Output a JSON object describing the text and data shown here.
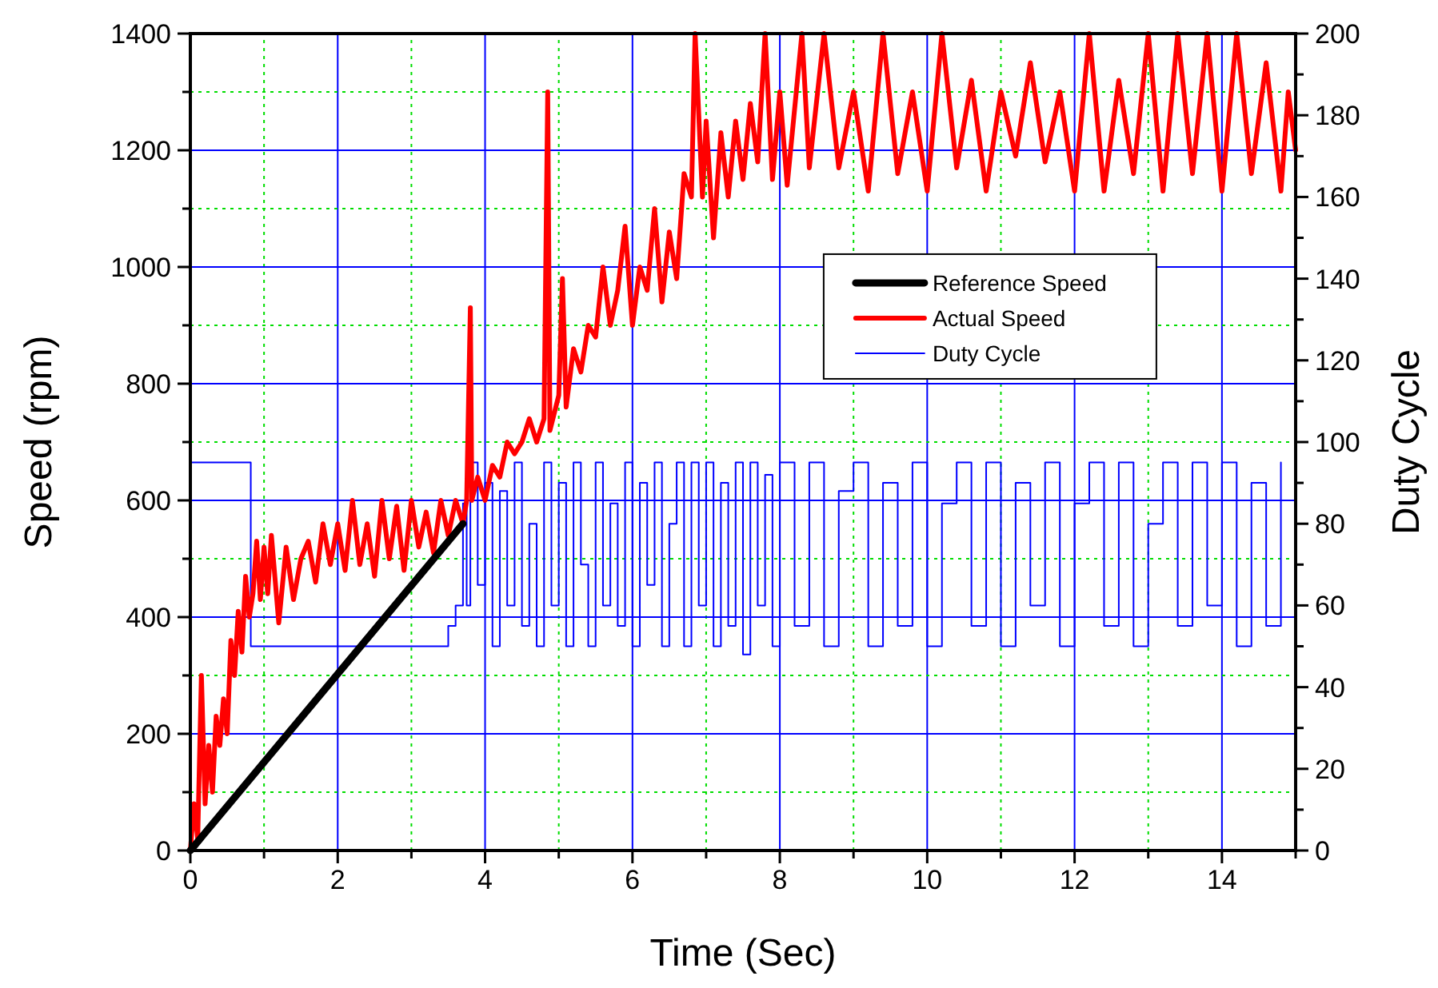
{
  "chart_data": {
    "type": "line",
    "xlabel": "Time (Sec)",
    "ylabel": "Speed (rpm)",
    "y2label": "Duty Cycle",
    "xlim": [
      0,
      15
    ],
    "ylim": [
      0,
      1400
    ],
    "y2lim": [
      0,
      200
    ],
    "xticks": [
      0,
      {
        "value": 1,
        "label": null
      },
      2,
      {
        "value": 3,
        "label": null
      },
      4,
      {
        "value": 5,
        "label": null
      },
      6,
      {
        "value": 7,
        "label": null
      },
      8,
      {
        "value": 9,
        "label": null
      },
      10,
      {
        "value": 11,
        "label": null
      },
      12,
      {
        "value": 13,
        "label": null
      },
      14,
      {
        "value": 15,
        "label": null
      }
    ],
    "yticks": [
      0,
      {
        "value": 100,
        "label": null
      },
      200,
      {
        "value": 300,
        "label": null
      },
      400,
      {
        "value": 500,
        "label": null
      },
      600,
      {
        "value": 700,
        "label": null
      },
      800,
      {
        "value": 900,
        "label": null
      },
      1000,
      {
        "value": 1100,
        "label": null
      },
      1200,
      {
        "value": 1300,
        "label": null
      },
      1400
    ],
    "y2ticks": [
      0,
      {
        "value": 10,
        "label": null
      },
      20,
      {
        "value": 30,
        "label": null
      },
      40,
      {
        "value": 50,
        "label": null
      },
      60,
      {
        "value": 70,
        "label": null
      },
      80,
      {
        "value": 90,
        "label": null
      },
      100,
      {
        "value": 110,
        "label": null
      },
      120,
      {
        "value": 130,
        "label": null
      },
      140,
      {
        "value": 150,
        "label": null
      },
      160,
      {
        "value": 170,
        "label": null
      },
      180,
      {
        "value": 190,
        "label": null
      },
      200
    ],
    "grid": true,
    "legend": "right",
    "marker": "none",
    "series": [
      {
        "name": "Reference Speed",
        "color": "#000000",
        "x": [
          0,
          3.7
        ],
        "values": [
          0,
          560
        ]
      },
      {
        "name": "Actual Speed",
        "color": "#ff0000",
        "x": [
          0,
          0.05,
          0.1,
          0.15,
          0.2,
          0.25,
          0.3,
          0.35,
          0.4,
          0.45,
          0.5,
          0.55,
          0.6,
          0.65,
          0.7,
          0.75,
          0.8,
          0.85,
          0.9,
          0.95,
          1.0,
          1.05,
          1.1,
          1.2,
          1.3,
          1.4,
          1.5,
          1.6,
          1.7,
          1.8,
          1.9,
          2.0,
          2.1,
          2.2,
          2.3,
          2.4,
          2.5,
          2.6,
          2.7,
          2.8,
          2.9,
          3.0,
          3.1,
          3.2,
          3.3,
          3.4,
          3.5,
          3.6,
          3.7,
          3.75,
          3.8,
          3.82,
          3.9,
          4.0,
          4.1,
          4.2,
          4.3,
          4.4,
          4.5,
          4.6,
          4.7,
          4.8,
          4.85,
          4.88,
          5.0,
          5.05,
          5.1,
          5.2,
          5.3,
          5.4,
          5.5,
          5.6,
          5.7,
          5.8,
          5.9,
          6.0,
          6.1,
          6.2,
          6.3,
          6.4,
          6.5,
          6.6,
          6.7,
          6.8,
          6.85,
          6.95,
          7.0,
          7.1,
          7.2,
          7.3,
          7.4,
          7.5,
          7.6,
          7.7,
          7.8,
          7.9,
          8.0,
          8.1,
          8.3,
          8.4,
          8.6,
          8.8,
          9.0,
          9.2,
          9.4,
          9.6,
          9.8,
          10.0,
          10.2,
          10.4,
          10.6,
          10.8,
          11.0,
          11.2,
          11.4,
          11.6,
          11.8,
          12.0,
          12.2,
          12.4,
          12.6,
          12.8,
          13.0,
          13.2,
          13.4,
          13.6,
          13.8,
          14.0,
          14.2,
          14.4,
          14.6,
          14.8,
          14.9,
          15.0
        ],
        "values": [
          0,
          80,
          20,
          300,
          80,
          180,
          100,
          230,
          180,
          260,
          200,
          360,
          300,
          410,
          340,
          470,
          400,
          440,
          530,
          430,
          520,
          440,
          540,
          390,
          520,
          430,
          500,
          530,
          460,
          560,
          490,
          560,
          480,
          600,
          490,
          560,
          470,
          600,
          500,
          590,
          480,
          600,
          520,
          580,
          510,
          600,
          540,
          600,
          560,
          600,
          930,
          600,
          640,
          600,
          660,
          640,
          700,
          680,
          700,
          740,
          700,
          740,
          1300,
          720,
          780,
          980,
          760,
          860,
          820,
          900,
          880,
          1000,
          900,
          960,
          1070,
          900,
          1000,
          960,
          1100,
          940,
          1060,
          980,
          1160,
          1120,
          1400,
          1120,
          1250,
          1050,
          1230,
          1120,
          1250,
          1150,
          1280,
          1180,
          1400,
          1150,
          1300,
          1140,
          1400,
          1170,
          1400,
          1170,
          1300,
          1130,
          1400,
          1160,
          1300,
          1130,
          1400,
          1170,
          1320,
          1130,
          1300,
          1190,
          1350,
          1180,
          1300,
          1130,
          1400,
          1130,
          1320,
          1160,
          1400,
          1130,
          1400,
          1160,
          1400,
          1130,
          1400,
          1160,
          1350,
          1130,
          1300,
          1200
        ]
      },
      {
        "name": "Duty Cycle",
        "color": "#0000ff",
        "axis": "y2",
        "type": "step",
        "x": [
          0,
          0.82,
          3.5,
          3.6,
          3.7,
          3.75,
          3.8,
          3.9,
          4.0,
          4.1,
          4.2,
          4.3,
          4.4,
          4.5,
          4.6,
          4.7,
          4.8,
          4.9,
          5.0,
          5.1,
          5.2,
          5.3,
          5.4,
          5.5,
          5.6,
          5.7,
          5.8,
          5.9,
          6.0,
          6.1,
          6.2,
          6.3,
          6.4,
          6.5,
          6.6,
          6.7,
          6.8,
          6.9,
          7.0,
          7.1,
          7.2,
          7.3,
          7.4,
          7.5,
          7.6,
          7.7,
          7.8,
          7.9,
          8.0,
          8.2,
          8.4,
          8.6,
          8.8,
          9.0,
          9.2,
          9.4,
          9.6,
          9.8,
          10.0,
          10.2,
          10.4,
          10.6,
          10.8,
          11.0,
          11.2,
          11.4,
          11.6,
          11.8,
          12.0,
          12.2,
          12.4,
          12.6,
          12.8,
          13.0,
          13.2,
          13.4,
          13.6,
          13.8,
          14.0,
          14.2,
          14.4,
          14.6,
          14.8
        ],
        "values": [
          95,
          50,
          55,
          60,
          85,
          60,
          95,
          65,
          90,
          50,
          88,
          60,
          95,
          55,
          80,
          50,
          95,
          60,
          90,
          50,
          95,
          70,
          50,
          95,
          60,
          85,
          55,
          95,
          50,
          90,
          65,
          95,
          50,
          80,
          95,
          50,
          95,
          60,
          95,
          50,
          90,
          55,
          95,
          48,
          95,
          60,
          92,
          50,
          95,
          55,
          95,
          50,
          88,
          95,
          50,
          90,
          55,
          95,
          50,
          85,
          95,
          55,
          95,
          50,
          90,
          60,
          95,
          50,
          85,
          95,
          55,
          95,
          50,
          80,
          95,
          55,
          95,
          60,
          95,
          50,
          90,
          55,
          95
        ]
      }
    ]
  }
}
